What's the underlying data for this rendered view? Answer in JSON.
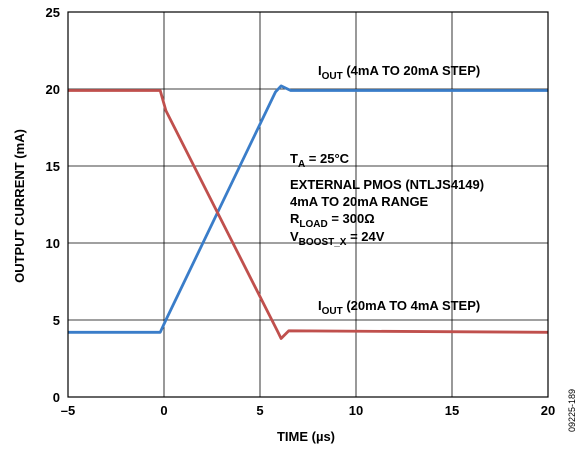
{
  "chart_data": {
    "type": "line",
    "xlabel": "TIME (µs)",
    "ylabel": "OUTPUT CURRENT (mA)",
    "xlim": [
      -5,
      20
    ],
    "ylim": [
      0,
      25
    ],
    "x_ticks": [
      "–5",
      "0",
      "5",
      "10",
      "15",
      "20"
    ],
    "y_ticks": [
      "0",
      "5",
      "10",
      "15",
      "20",
      "25"
    ],
    "grid": true,
    "figure_id": "09225-189",
    "series": [
      {
        "label_main": "I",
        "label_sub": "OUT",
        "label_rest": " (4mA TO 20mA STEP)",
        "color": "#3a7dc9",
        "points": [
          [
            -5,
            4.2
          ],
          [
            -0.2,
            4.2
          ],
          [
            0.1,
            5.0
          ],
          [
            5.8,
            19.8
          ],
          [
            6.1,
            20.2
          ],
          [
            6.6,
            19.9
          ],
          [
            20,
            19.9
          ]
        ]
      },
      {
        "label_main": "I",
        "label_sub": "OUT",
        "label_rest": " (20mA TO 4mA STEP)",
        "color": "#c0504d",
        "points": [
          [
            -5,
            19.9
          ],
          [
            -0.2,
            19.9
          ],
          [
            0.1,
            18.6
          ],
          [
            5.9,
            4.3
          ],
          [
            6.1,
            3.8
          ],
          [
            6.5,
            4.3
          ],
          [
            20,
            4.2
          ]
        ]
      }
    ],
    "annotations": {
      "ta_main": "T",
      "ta_sub": "A",
      "ta_rest": " = 25°C",
      "line2": "EXTERNAL PMOS (NTLJS4149)",
      "line3": "4mA TO 20mA RANGE",
      "rload_main": "R",
      "rload_sub": "LOAD",
      "rload_rest": " = 300Ω",
      "vboost_main": "V",
      "vboost_sub": "BOOST_X",
      "vboost_rest": " = 24V"
    }
  }
}
